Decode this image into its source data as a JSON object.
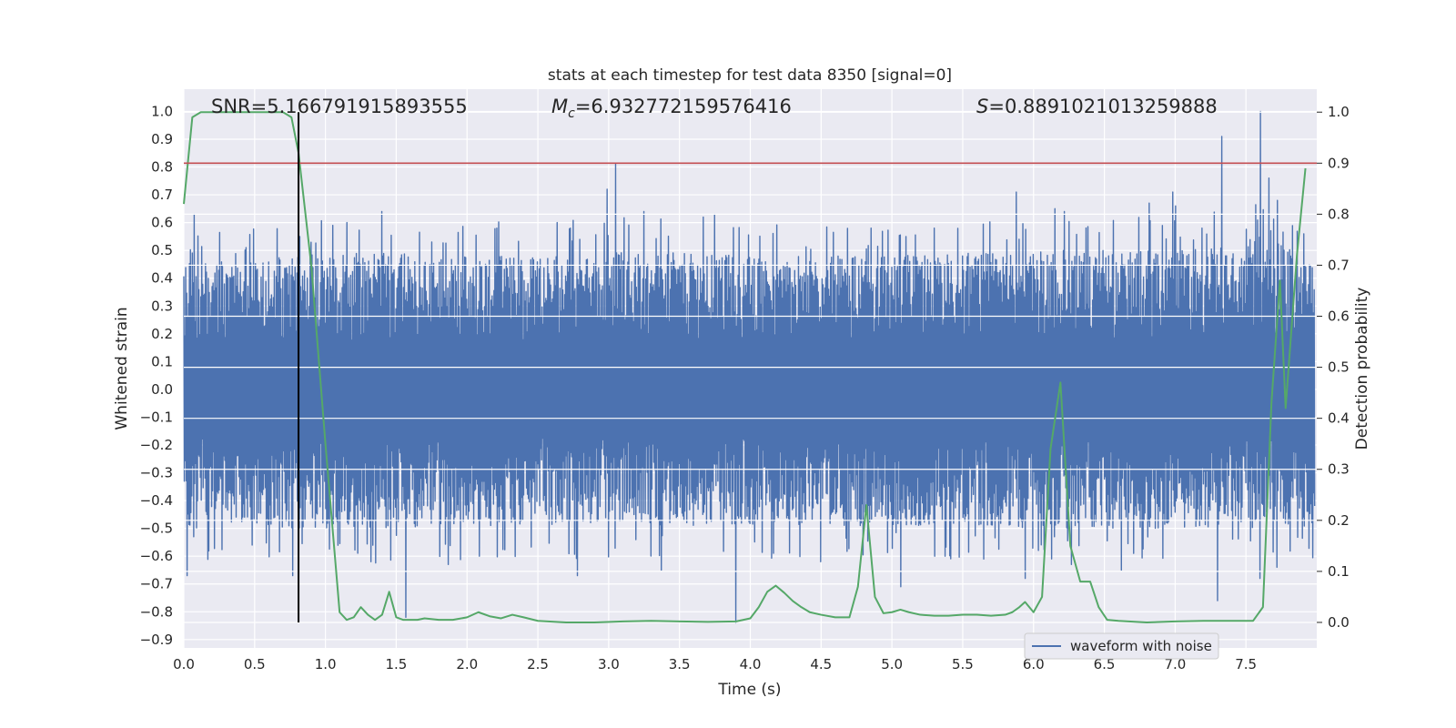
{
  "chart_data": {
    "type": "line",
    "title": "stats at each timestep for test data 8350 [signal=0]",
    "xlabel": "Time (s)",
    "ylabel_left": "Whitened strain",
    "ylabel_right": "Detection probability",
    "xlim": [
      0.0,
      8.0
    ],
    "ylim_left": [
      -0.93,
      1.08
    ],
    "ylim_right": [
      -0.05,
      1.045
    ],
    "x_ticks": [
      0.0,
      0.5,
      1.0,
      1.5,
      2.0,
      2.5,
      3.0,
      3.5,
      4.0,
      4.5,
      5.0,
      5.5,
      6.0,
      6.5,
      7.0,
      7.5
    ],
    "x_tick_labels": [
      "0.0",
      "0.5",
      "1.0",
      "1.5",
      "2.0",
      "2.5",
      "3.0",
      "3.5",
      "4.0",
      "4.5",
      "5.0",
      "5.5",
      "6.0",
      "6.5",
      "7.0",
      "7.5"
    ],
    "y_left_ticks": [
      1.0,
      0.9,
      0.8,
      0.7,
      0.6,
      0.5,
      0.4,
      0.3,
      0.2,
      0.1,
      0.0,
      -0.1,
      -0.2,
      -0.3,
      -0.4,
      -0.5,
      -0.6,
      -0.7,
      -0.8,
      -0.9
    ],
    "y_left_tick_labels": [
      "1.0",
      "0.9",
      "0.8",
      "0.7",
      "0.6",
      "0.5",
      "0.4",
      "0.3",
      "0.2",
      "0.1",
      "0.0",
      "−0.1",
      "−0.2",
      "−0.3",
      "−0.4",
      "−0.5",
      "−0.6",
      "−0.7",
      "−0.8",
      "−0.9"
    ],
    "y_right_ticks": [
      1.0,
      0.9,
      0.8,
      0.7,
      0.6,
      0.5,
      0.4,
      0.3,
      0.2,
      0.1,
      0.0
    ],
    "y_right_tick_labels": [
      "1.0",
      "0.9",
      "0.8",
      "0.7",
      "0.6",
      "0.5",
      "0.4",
      "0.3",
      "0.2",
      "0.1",
      "0.0"
    ],
    "grid": true,
    "legend": {
      "position": "bottom-right",
      "entries": [
        "waveform with noise"
      ]
    },
    "annotations": {
      "snr": "SNR=5.166791915893555",
      "mc_symbol": "M",
      "mc_subscript": "c",
      "mc_value": "=6.932772159576416",
      "s_symbol": "S",
      "s_value": "=0.8891021013259888"
    },
    "threshold_line": {
      "axis": "right",
      "y": 0.9,
      "color": "#c44e52"
    },
    "marker_line": {
      "axis": "right",
      "x": 0.81,
      "y_range": [
        0.0,
        1.0
      ],
      "color": "#000000"
    },
    "series": [
      {
        "name": "waveform with noise",
        "axis": "left",
        "color": "#4c72b0",
        "envelope": {
          "x": [
            0.0,
            0.1,
            0.2,
            0.3,
            0.5,
            0.8,
            1.0,
            1.5,
            2.0,
            2.5,
            3.0,
            3.5,
            4.0,
            4.5,
            5.0,
            5.5,
            6.0,
            6.5,
            7.0,
            7.35,
            7.6,
            7.9,
            8.0
          ],
          "upper": [
            0.45,
            0.46,
            0.46,
            0.46,
            0.47,
            0.48,
            0.49,
            0.49,
            0.48,
            0.49,
            0.5,
            0.49,
            0.48,
            0.48,
            0.48,
            0.49,
            0.5,
            0.5,
            0.5,
            0.52,
            0.55,
            0.5,
            0.5
          ],
          "lower": [
            -0.5,
            -0.5,
            -0.49,
            -0.49,
            -0.49,
            -0.5,
            -0.5,
            -0.5,
            -0.49,
            -0.49,
            -0.49,
            -0.49,
            -0.49,
            -0.49,
            -0.49,
            -0.49,
            -0.5,
            -0.5,
            -0.5,
            -0.5,
            -0.5,
            -0.5,
            -0.5
          ]
        },
        "peaks": {
          "x": [
            0.07,
            0.44,
            0.82,
            1.05,
            1.15,
            1.4,
            2.21,
            2.73,
            2.99,
            3.05,
            3.25,
            3.67,
            3.75,
            4.85,
            5.1,
            5.3,
            5.88,
            6.15,
            6.22,
            6.82,
            6.98,
            7.0,
            7.33,
            7.6,
            7.66,
            7.72
          ],
          "y": [
            0.63,
            0.51,
            0.55,
            0.59,
            0.6,
            0.64,
            0.58,
            0.58,
            0.72,
            0.81,
            0.64,
            0.62,
            0.63,
            0.58,
            0.55,
            0.58,
            0.71,
            0.65,
            0.64,
            0.67,
            0.71,
            0.66,
            0.91,
            1.0,
            0.76,
            0.68
          ]
        },
        "troughs": {
          "x": [
            0.02,
            0.77,
            1.32,
            1.57,
            1.87,
            2.09,
            2.78,
            3.37,
            3.9,
            4.5,
            5.06,
            5.3,
            5.94,
            6.27,
            6.62,
            7.3,
            7.6,
            7.72
          ],
          "y": [
            -0.67,
            -0.67,
            -0.62,
            -0.82,
            -0.63,
            -0.6,
            -0.67,
            -0.65,
            -0.84,
            -0.62,
            -0.71,
            -0.6,
            -0.68,
            -0.63,
            -0.65,
            -0.76,
            -0.68,
            -0.64
          ]
        }
      },
      {
        "name": "",
        "axis": "right",
        "color": "#55a868",
        "x": [
          0.0,
          0.06,
          0.12,
          0.2,
          0.4,
          0.6,
          0.7,
          0.76,
          0.81,
          0.9,
          1.0,
          1.1,
          1.15,
          1.2,
          1.25,
          1.3,
          1.35,
          1.4,
          1.45,
          1.5,
          1.55,
          1.6,
          1.65,
          1.7,
          1.8,
          1.9,
          2.0,
          2.08,
          2.16,
          2.24,
          2.32,
          2.4,
          2.5,
          2.7,
          2.9,
          3.1,
          3.3,
          3.5,
          3.7,
          3.9,
          4.0,
          4.06,
          4.12,
          4.18,
          4.24,
          4.3,
          4.36,
          4.42,
          4.5,
          4.6,
          4.7,
          4.76,
          4.82,
          4.88,
          4.94,
          5.0,
          5.06,
          5.12,
          5.2,
          5.3,
          5.4,
          5.5,
          5.6,
          5.7,
          5.8,
          5.85,
          5.9,
          5.94,
          6.0,
          6.06,
          6.12,
          6.19,
          6.26,
          6.33,
          6.4,
          6.46,
          6.52,
          6.6,
          6.8,
          7.0,
          7.2,
          7.4,
          7.55,
          7.62,
          7.68,
          7.74,
          7.78,
          7.86,
          7.92
        ],
        "y": [
          0.82,
          0.99,
          1.0,
          1.0,
          1.0,
          1.0,
          1.0,
          0.99,
          0.92,
          0.7,
          0.35,
          0.02,
          0.005,
          0.01,
          0.03,
          0.015,
          0.005,
          0.015,
          0.06,
          0.01,
          0.005,
          0.005,
          0.005,
          0.008,
          0.005,
          0.005,
          0.01,
          0.02,
          0.012,
          0.008,
          0.015,
          0.01,
          0.003,
          0.0,
          0.0,
          0.002,
          0.003,
          0.002,
          0.001,
          0.002,
          0.008,
          0.03,
          0.06,
          0.072,
          0.058,
          0.042,
          0.03,
          0.02,
          0.015,
          0.01,
          0.01,
          0.07,
          0.23,
          0.05,
          0.018,
          0.02,
          0.025,
          0.02,
          0.015,
          0.013,
          0.013,
          0.015,
          0.015,
          0.013,
          0.015,
          0.02,
          0.03,
          0.04,
          0.02,
          0.05,
          0.34,
          0.47,
          0.15,
          0.08,
          0.08,
          0.03,
          0.005,
          0.003,
          0.0,
          0.002,
          0.003,
          0.003,
          0.003,
          0.03,
          0.43,
          0.67,
          0.42,
          0.72,
          0.89
        ]
      }
    ]
  }
}
